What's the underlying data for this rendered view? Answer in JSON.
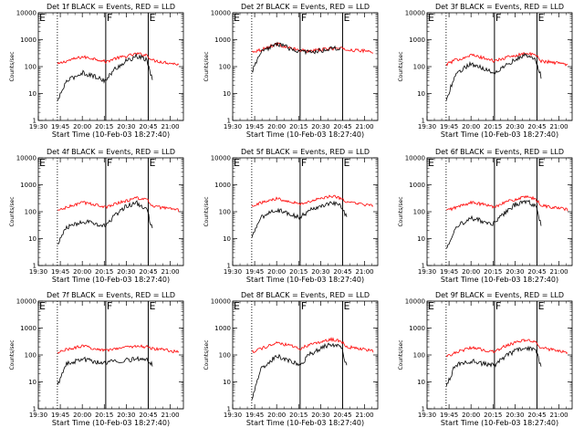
{
  "figure": {
    "panels": [
      {
        "title": "Det 1f BLACK = Events, RED = LLD",
        "ylabel": "Counts/sec",
        "xlabel": "Start Time (10-Feb-03 18:27:40)"
      },
      {
        "title": "Det 2f BLACK = Events, RED = LLD",
        "ylabel": "Counts/sec",
        "xlabel": "Start Time (10-Feb-03 18:27:40)"
      },
      {
        "title": "Det 3f BLACK = Events, RED = LLD",
        "ylabel": "Counts/sec",
        "xlabel": "Start Time (10-Feb-03 18:27:40)"
      },
      {
        "title": "Det 4f BLACK = Events, RED = LLD",
        "ylabel": "Counts/sec",
        "xlabel": "Start Time (10-Feb-03 18:27:40)"
      },
      {
        "title": "Det 5f BLACK = Events, RED = LLD",
        "ylabel": "Counts/sec",
        "xlabel": "Start Time (10-Feb-03 18:27:40)"
      },
      {
        "title": "Det 6f BLACK = Events, RED = LLD",
        "ylabel": "Counts/sec",
        "xlabel": "Start Time (10-Feb-03 18:27:40)"
      },
      {
        "title": "Det 7f BLACK = Events, RED = LLD",
        "ylabel": "Counts/sec",
        "xlabel": "Start Time (10-Feb-03 18:27:40)"
      },
      {
        "title": "Det 8f BLACK = Events, RED = LLD",
        "ylabel": "Counts/sec",
        "xlabel": "Start Time (10-Feb-03 18:27:40)"
      },
      {
        "title": "Det 9f BLACK = Events, RED = LLD",
        "ylabel": "Counts/sec",
        "xlabel": "Start Time (10-Feb-03 18:27:40)"
      }
    ]
  },
  "chart_data": {
    "type": "line",
    "layout": "3x3 grid of panels",
    "x_tick_labels": [
      "19:30",
      "19:45",
      "20:00",
      "20:15",
      "20:30",
      "20:45",
      "21:00"
    ],
    "y_tick_labels": [
      "1",
      "10",
      "100",
      "1000",
      "10000"
    ],
    "y_scale": "log",
    "ylim": [
      1,
      10000
    ],
    "xlim_minutes_after_19_30": [
      0,
      99
    ],
    "grid": false,
    "vertical_markers": [
      {
        "time": "19:43",
        "style": "dotted"
      },
      {
        "time": "20:16",
        "style": "solid"
      },
      {
        "time": "20:45",
        "style": "solid"
      }
    ],
    "marker_labels": [
      {
        "label": "E",
        "time": "19:30"
      },
      {
        "label": "F",
        "time": "20:16"
      },
      {
        "label": "E",
        "time": "20:45"
      }
    ],
    "colors": {
      "events": "#000000",
      "lld": "#ff0000"
    },
    "series_key": [
      "events",
      "lld"
    ],
    "curve_time_points": [
      "19:43",
      "19:49",
      "20:00",
      "20:10",
      "20:16",
      "20:22",
      "20:30",
      "20:37",
      "20:44",
      "20:48",
      "20:58",
      "21:06"
    ],
    "panels": [
      {
        "events": [
          5,
          28,
          60,
          40,
          30,
          80,
          160,
          240,
          180,
          28,
          null,
          null
        ],
        "lld": [
          120,
          160,
          230,
          190,
          150,
          200,
          240,
          300,
          270,
          170,
          140,
          120
        ]
      },
      {
        "events": [
          60,
          320,
          720,
          450,
          370,
          340,
          400,
          460,
          460,
          null,
          null,
          null
        ],
        "lld": [
          360,
          420,
          700,
          470,
          400,
          380,
          420,
          470,
          470,
          420,
          390,
          360
        ]
      },
      {
        "events": [
          5,
          50,
          130,
          80,
          60,
          100,
          180,
          270,
          180,
          40,
          null,
          null
        ],
        "lld": [
          120,
          170,
          270,
          200,
          160,
          200,
          260,
          310,
          270,
          160,
          140,
          120
        ]
      },
      {
        "events": [
          6,
          25,
          45,
          35,
          30,
          70,
          160,
          210,
          120,
          20,
          null,
          null
        ],
        "lld": [
          110,
          140,
          220,
          180,
          140,
          200,
          250,
          330,
          280,
          160,
          130,
          110
        ]
      },
      {
        "events": [
          10,
          60,
          120,
          80,
          60,
          110,
          170,
          220,
          160,
          60,
          null,
          null
        ],
        "lld": [
          170,
          210,
          310,
          240,
          190,
          240,
          300,
          380,
          320,
          220,
          190,
          160
        ]
      },
      {
        "events": [
          4,
          25,
          60,
          40,
          35,
          80,
          180,
          250,
          170,
          30,
          null,
          null
        ],
        "lld": [
          110,
          140,
          220,
          180,
          150,
          220,
          280,
          350,
          300,
          170,
          140,
          120
        ]
      },
      {
        "events": [
          7,
          45,
          70,
          55,
          50,
          60,
          65,
          70,
          65,
          45,
          null,
          null
        ],
        "lld": [
          120,
          160,
          210,
          170,
          150,
          170,
          200,
          210,
          200,
          170,
          150,
          130
        ]
      },
      {
        "events": [
          2,
          30,
          90,
          60,
          40,
          100,
          180,
          250,
          200,
          35,
          null,
          null
        ],
        "lld": [
          130,
          170,
          270,
          220,
          170,
          240,
          300,
          380,
          320,
          200,
          170,
          140
        ]
      },
      {
        "events": [
          6,
          40,
          60,
          45,
          40,
          80,
          140,
          180,
          150,
          35,
          null,
          null
        ],
        "lld": [
          90,
          120,
          190,
          150,
          130,
          200,
          280,
          360,
          300,
          180,
          150,
          120
        ]
      }
    ]
  }
}
